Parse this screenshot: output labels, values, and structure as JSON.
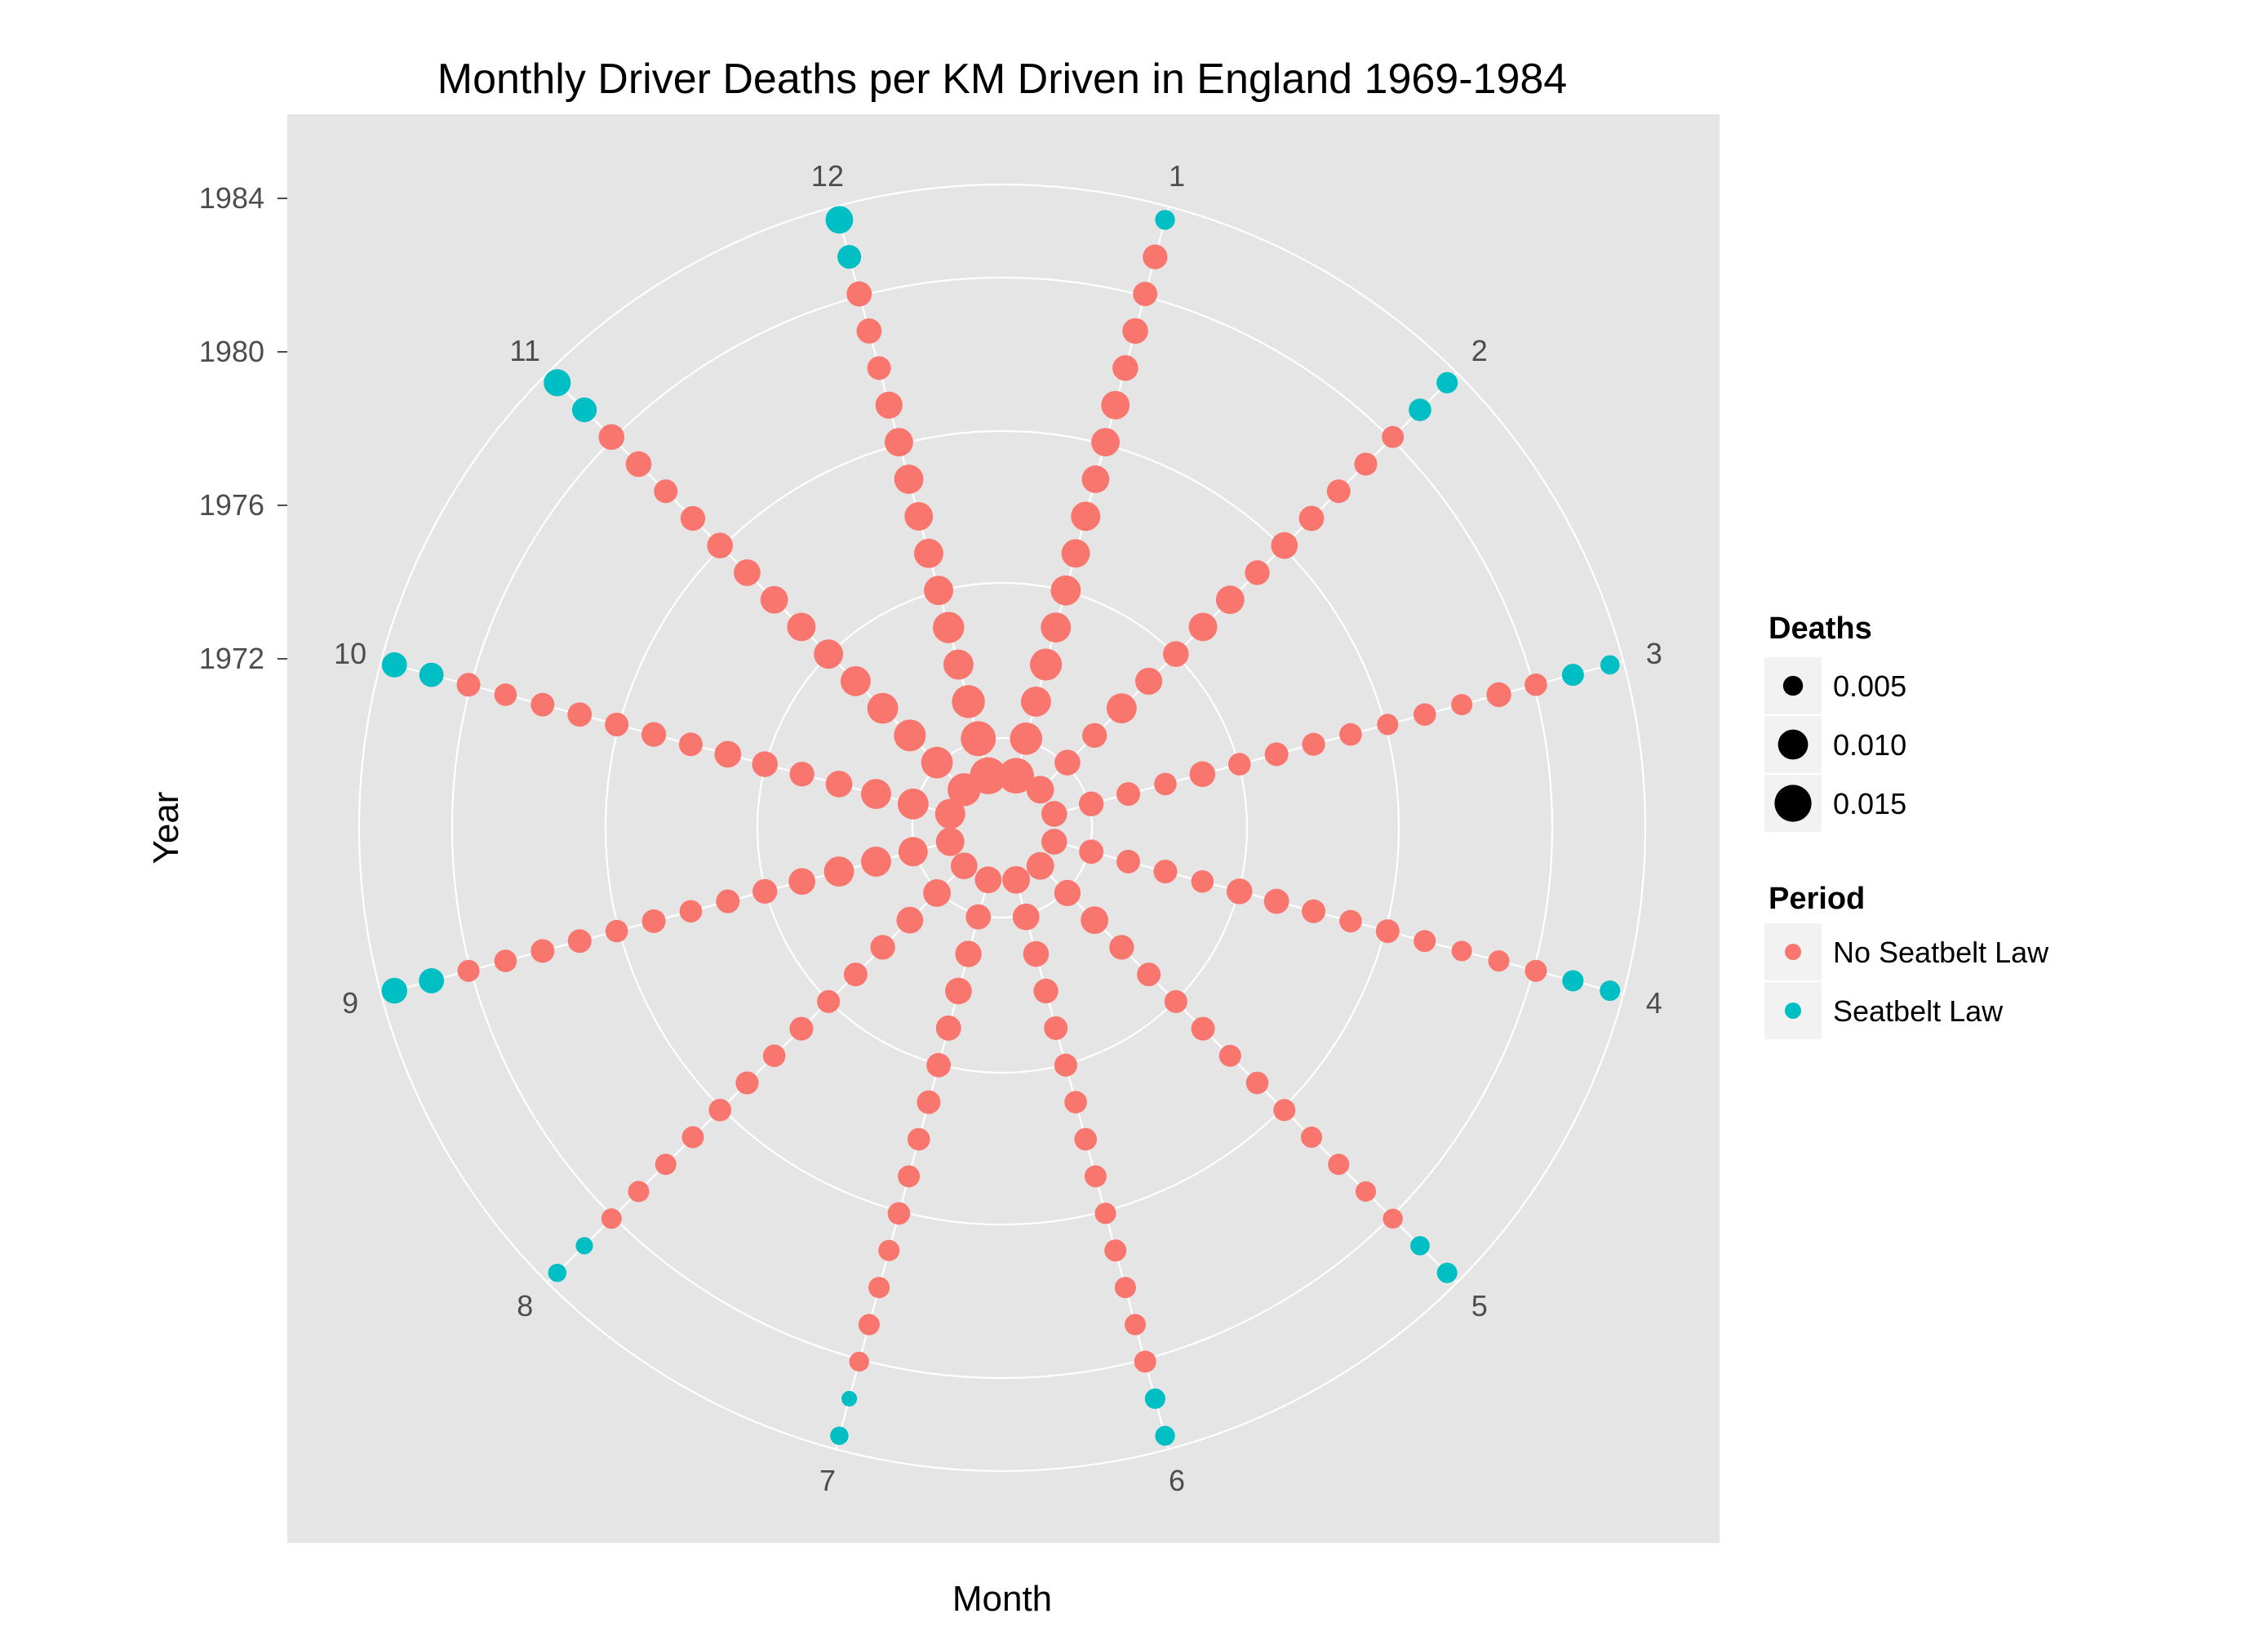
{
  "chart_data": {
    "type": "scatter",
    "coord": "polar",
    "title": "Monthly Driver Deaths per KM Driven in England 1969-1984",
    "xlabel": "Month",
    "ylabel": "Year",
    "theta_categories": [
      "1",
      "2",
      "3",
      "4",
      "5",
      "6",
      "7",
      "8",
      "9",
      "10",
      "11",
      "12"
    ],
    "r_ticks": [
      1972,
      1976,
      1980,
      1984
    ],
    "r_range": [
      1969,
      1984.75
    ],
    "grid": true,
    "legend_position": "right",
    "legends": {
      "size": {
        "title": "Deaths",
        "entries": [
          {
            "label": "0.005",
            "value": 0.005
          },
          {
            "label": "0.010",
            "value": 0.01
          },
          {
            "label": "0.015",
            "value": 0.015
          }
        ]
      },
      "color": {
        "title": "Period",
        "entries": [
          {
            "label": "No Seatbelt Law",
            "color": "#F8766D"
          },
          {
            "label": "Seatbelt Law",
            "color": "#00BFC4"
          }
        ]
      }
    },
    "seatbelt_law_start": {
      "year": 1983,
      "month": 2
    },
    "deaths_range": [
      0.003,
      0.017
    ],
    "years": [
      1969,
      1970,
      1971,
      1972,
      1973,
      1974,
      1975,
      1976,
      1977,
      1978,
      1979,
      1980,
      1981,
      1982,
      1983,
      1984
    ],
    "series": [
      {
        "month": 1,
        "deaths": [
          0.014,
          0.0115,
          0.01,
          0.0112,
          0.01,
          0.01,
          0.009,
          0.0095,
          0.0085,
          0.009,
          0.009,
          0.0075,
          0.0075,
          0.0068,
          0.007,
          0.005
        ]
      },
      {
        "month": 2,
        "deaths": [
          0.0085,
          0.0075,
          0.007,
          0.01,
          0.0082,
          0.0075,
          0.009,
          0.009,
          0.007,
          0.008,
          0.0072,
          0.0065,
          0.0062,
          0.0058,
          0.006,
          0.0055
        ]
      },
      {
        "month": 3,
        "deaths": [
          0.0075,
          0.007,
          0.0065,
          0.006,
          0.0075,
          0.006,
          0.0065,
          0.0062,
          0.006,
          0.0055,
          0.006,
          0.0055,
          0.007,
          0.006,
          0.0058,
          0.0048
        ]
      },
      {
        "month": 4,
        "deaths": [
          0.0075,
          0.0068,
          0.0065,
          0.0065,
          0.006,
          0.0075,
          0.0072,
          0.0065,
          0.006,
          0.0065,
          0.0058,
          0.0052,
          0.0055,
          0.0058,
          0.0055,
          0.0052
        ]
      },
      {
        "month": 5,
        "deaths": [
          0.0085,
          0.0078,
          0.0085,
          0.007,
          0.0065,
          0.0062,
          0.0065,
          0.0058,
          0.006,
          0.0058,
          0.0055,
          0.0055,
          0.0052,
          0.005,
          0.0048,
          0.0052
        ]
      },
      {
        "month": 6,
        "deaths": [
          0.0085,
          0.008,
          0.0075,
          0.007,
          0.0065,
          0.0062,
          0.006,
          0.006,
          0.0058,
          0.0055,
          0.0058,
          0.0055,
          0.0055,
          0.0058,
          0.0052,
          0.005
        ]
      },
      {
        "month": 7,
        "deaths": [
          0.008,
          0.0072,
          0.0078,
          0.008,
          0.0072,
          0.0068,
          0.0065,
          0.006,
          0.0058,
          0.006,
          0.0055,
          0.0055,
          0.0055,
          0.005,
          0.0038,
          0.0045
        ]
      },
      {
        "month": 8,
        "deaths": [
          0.008,
          0.0085,
          0.008,
          0.007,
          0.0065,
          0.0062,
          0.0065,
          0.006,
          0.0062,
          0.006,
          0.0058,
          0.0055,
          0.0055,
          0.0052,
          0.0042,
          0.0045
        ]
      },
      {
        "month": 9,
        "deaths": [
          0.009,
          0.0095,
          0.01,
          0.01,
          0.008,
          0.007,
          0.0065,
          0.006,
          0.0065,
          0.006,
          0.0065,
          0.0065,
          0.006,
          0.0058,
          0.0072,
          0.0075
        ]
      },
      {
        "month": 10,
        "deaths": [
          0.01,
          0.0105,
          0.01,
          0.008,
          0.007,
          0.0075,
          0.008,
          0.0065,
          0.007,
          0.0065,
          0.0068,
          0.0065,
          0.006,
          0.0065,
          0.0068,
          0.0072
        ]
      },
      {
        "month": 11,
        "deaths": [
          0.012,
          0.011,
          0.0112,
          0.0105,
          0.01,
          0.0095,
          0.009,
          0.0085,
          0.008,
          0.0075,
          0.007,
          0.0065,
          0.0075,
          0.0075,
          0.007,
          0.0082
        ]
      },
      {
        "month": 12,
        "deaths": [
          0.015,
          0.0135,
          0.012,
          0.01,
          0.0108,
          0.0095,
          0.0095,
          0.009,
          0.0095,
          0.009,
          0.0082,
          0.0065,
          0.0072,
          0.0072,
          0.0065,
          0.0085
        ]
      }
    ]
  }
}
